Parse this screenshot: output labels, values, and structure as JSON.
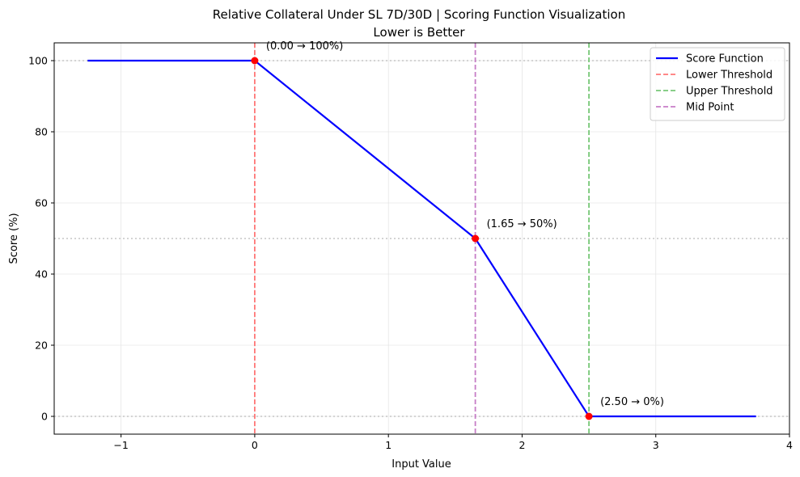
{
  "chart_data": {
    "type": "line",
    "title": "Relative Collateral Under SL 7D/30D | Scoring Function Visualization",
    "subtitle": "Lower is Better",
    "xlabel": "Input Value",
    "ylabel": "Score (%)",
    "xlim": [
      -1.5,
      4
    ],
    "ylim": [
      -5,
      105
    ],
    "xticks": [
      -1,
      0,
      1,
      2,
      3,
      4
    ],
    "xtick_labels": [
      "−1",
      "0",
      "1",
      "2",
      "3",
      "4"
    ],
    "yticks": [
      0,
      20,
      40,
      60,
      80,
      100
    ],
    "ytick_labels": [
      "0",
      "20",
      "40",
      "60",
      "80",
      "100"
    ],
    "grid": true,
    "legend_position": "top-right",
    "series": [
      {
        "name": "Score Function",
        "color": "#0000ff",
        "style": "solid",
        "x": [
          -1.25,
          0,
          1.65,
          2.5,
          3.75
        ],
        "y": [
          100,
          100,
          50,
          0,
          0
        ]
      }
    ],
    "vertical_lines": [
      {
        "name": "Lower Threshold",
        "x": 0,
        "color": "#ff7777"
      },
      {
        "name": "Upper Threshold",
        "x": 2.5,
        "color": "#77c777"
      },
      {
        "name": "Mid Point",
        "x": 1.65,
        "color": "#c77dc7"
      }
    ],
    "horizontal_reference_lines": [
      0,
      50,
      100
    ],
    "key_points": [
      {
        "x": 0,
        "y": 100,
        "label": "(0.00 → 100%)"
      },
      {
        "x": 1.65,
        "y": 50,
        "label": "(1.65 → 50%)"
      },
      {
        "x": 2.5,
        "y": 0,
        "label": "(2.50 → 0%)"
      }
    ],
    "point_color": "#ff0000"
  }
}
